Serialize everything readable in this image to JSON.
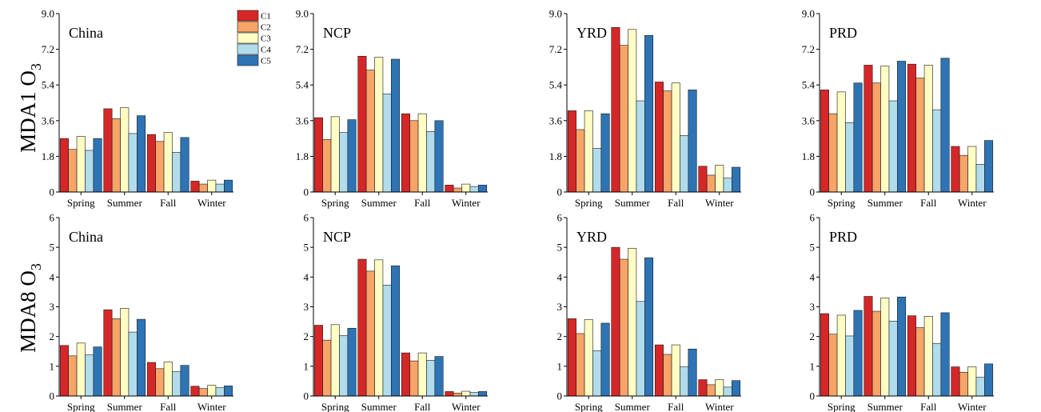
{
  "colors": {
    "C1": "#d62728",
    "C2": "#f7a468",
    "C3": "#fffcc4",
    "C4": "#b1dcec",
    "C5": "#2e74b5"
  },
  "legend": [
    "C1",
    "C2",
    "C3",
    "C4",
    "C5"
  ],
  "rows": [
    {
      "label_main": "MDA1 O",
      "label_sub": "3"
    },
    {
      "label_main": "MDA8 O",
      "label_sub": "3"
    }
  ],
  "chart_data": [
    {
      "type": "bar",
      "row": 0,
      "col": 0,
      "title": "China",
      "categories": [
        "Spring",
        "Summer",
        "Fall",
        "Winter"
      ],
      "ylim": [
        0,
        9.0
      ],
      "yticks": [
        "0",
        "1.8",
        "3.6",
        "5.4",
        "7.2",
        "9.0"
      ],
      "series": [
        {
          "name": "C1",
          "values": [
            2.7,
            4.2,
            2.9,
            0.55
          ]
        },
        {
          "name": "C2",
          "values": [
            2.15,
            3.7,
            2.55,
            0.4
          ]
        },
        {
          "name": "C3",
          "values": [
            2.8,
            4.25,
            3.0,
            0.6
          ]
        },
        {
          "name": "C4",
          "values": [
            2.1,
            2.95,
            2.0,
            0.4
          ]
        },
        {
          "name": "C5",
          "values": [
            2.7,
            3.85,
            2.75,
            0.6
          ]
        }
      ]
    },
    {
      "type": "bar",
      "row": 0,
      "col": 1,
      "title": "NCP",
      "categories": [
        "Spring",
        "Summer",
        "Fall",
        "Winter"
      ],
      "ylim": [
        0,
        9.0
      ],
      "yticks": [
        "0",
        "1.8",
        "3.6",
        "5.4",
        "7.2",
        "9.0"
      ],
      "series": [
        {
          "name": "C1",
          "values": [
            3.75,
            6.85,
            3.95,
            0.35
          ]
        },
        {
          "name": "C2",
          "values": [
            2.65,
            6.15,
            3.6,
            0.2
          ]
        },
        {
          "name": "C3",
          "values": [
            3.8,
            6.8,
            3.95,
            0.4
          ]
        },
        {
          "name": "C4",
          "values": [
            3.0,
            4.95,
            3.05,
            0.28
          ]
        },
        {
          "name": "C5",
          "values": [
            3.65,
            6.7,
            3.6,
            0.35
          ]
        }
      ]
    },
    {
      "type": "bar",
      "row": 0,
      "col": 2,
      "title": "YRD",
      "categories": [
        "Spring",
        "Summer",
        "Fall",
        "Winter"
      ],
      "ylim": [
        0,
        9.0
      ],
      "yticks": [
        "0",
        "1.8",
        "3.6",
        "5.4",
        "7.2",
        "9.0"
      ],
      "series": [
        {
          "name": "C1",
          "values": [
            4.1,
            8.3,
            5.55,
            1.3
          ]
        },
        {
          "name": "C2",
          "values": [
            3.15,
            7.4,
            5.1,
            0.85
          ]
        },
        {
          "name": "C3",
          "values": [
            4.1,
            8.2,
            5.5,
            1.35
          ]
        },
        {
          "name": "C4",
          "values": [
            2.2,
            4.6,
            2.85,
            0.7
          ]
        },
        {
          "name": "C5",
          "values": [
            3.95,
            7.9,
            5.15,
            1.25
          ]
        }
      ]
    },
    {
      "type": "bar",
      "row": 0,
      "col": 3,
      "title": "PRD",
      "categories": [
        "Spring",
        "Summer",
        "Fall",
        "Winter"
      ],
      "ylim": [
        0,
        9.0
      ],
      "yticks": [
        "0",
        "1.8",
        "3.6",
        "5.4",
        "7.2",
        "9.0"
      ],
      "series": [
        {
          "name": "C1",
          "values": [
            5.15,
            6.4,
            6.45,
            2.3
          ]
        },
        {
          "name": "C2",
          "values": [
            3.95,
            5.5,
            5.75,
            1.85
          ]
        },
        {
          "name": "C3",
          "values": [
            5.05,
            6.35,
            6.4,
            2.3
          ]
        },
        {
          "name": "C4",
          "values": [
            3.5,
            4.6,
            4.15,
            1.4
          ]
        },
        {
          "name": "C5",
          "values": [
            5.5,
            6.6,
            6.75,
            2.6
          ]
        }
      ]
    },
    {
      "type": "bar",
      "row": 1,
      "col": 0,
      "title": "China",
      "categories": [
        "Spring",
        "Summer",
        "Fall",
        "Winter"
      ],
      "ylim": [
        0,
        6
      ],
      "yticks": [
        "0",
        "1",
        "2",
        "3",
        "4",
        "5",
        "6"
      ],
      "series": [
        {
          "name": "C1",
          "values": [
            1.7,
            2.9,
            1.13,
            0.33
          ]
        },
        {
          "name": "C2",
          "values": [
            1.35,
            2.6,
            0.92,
            0.25
          ]
        },
        {
          "name": "C3",
          "values": [
            1.78,
            2.95,
            1.15,
            0.36
          ]
        },
        {
          "name": "C4",
          "values": [
            1.38,
            2.15,
            0.82,
            0.28
          ]
        },
        {
          "name": "C5",
          "values": [
            1.65,
            2.58,
            1.03,
            0.34
          ]
        }
      ]
    },
    {
      "type": "bar",
      "row": 1,
      "col": 1,
      "title": "NCP",
      "categories": [
        "Spring",
        "Summer",
        "Fall",
        "Winter"
      ],
      "ylim": [
        0,
        6
      ],
      "yticks": [
        "0",
        "1",
        "2",
        "3",
        "4",
        "5",
        "6"
      ],
      "series": [
        {
          "name": "C1",
          "values": [
            2.38,
            4.6,
            1.45,
            0.15
          ]
        },
        {
          "name": "C2",
          "values": [
            1.88,
            4.2,
            1.18,
            0.1
          ]
        },
        {
          "name": "C3",
          "values": [
            2.4,
            4.58,
            1.45,
            0.16
          ]
        },
        {
          "name": "C4",
          "values": [
            2.03,
            3.73,
            1.2,
            0.12
          ]
        },
        {
          "name": "C5",
          "values": [
            2.28,
            4.38,
            1.33,
            0.15
          ]
        }
      ]
    },
    {
      "type": "bar",
      "row": 1,
      "col": 2,
      "title": "YRD",
      "categories": [
        "Spring",
        "Summer",
        "Fall",
        "Winter"
      ],
      "ylim": [
        0,
        6
      ],
      "yticks": [
        "0",
        "1",
        "2",
        "3",
        "4",
        "5",
        "6"
      ],
      "series": [
        {
          "name": "C1",
          "values": [
            2.6,
            5.0,
            1.72,
            0.55
          ]
        },
        {
          "name": "C2",
          "values": [
            2.1,
            4.6,
            1.4,
            0.38
          ]
        },
        {
          "name": "C3",
          "values": [
            2.57,
            4.97,
            1.72,
            0.55
          ]
        },
        {
          "name": "C4",
          "values": [
            1.52,
            3.18,
            0.98,
            0.3
          ]
        },
        {
          "name": "C5",
          "values": [
            2.45,
            4.65,
            1.58,
            0.52
          ]
        }
      ]
    },
    {
      "type": "bar",
      "row": 1,
      "col": 3,
      "title": "PRD",
      "categories": [
        "Spring",
        "Summer",
        "Fall",
        "Winter"
      ],
      "ylim": [
        0,
        6
      ],
      "yticks": [
        "0",
        "1",
        "2",
        "3",
        "4",
        "5",
        "6"
      ],
      "series": [
        {
          "name": "C1",
          "values": [
            2.77,
            3.35,
            2.7,
            0.98
          ]
        },
        {
          "name": "C2",
          "values": [
            2.08,
            2.85,
            2.3,
            0.8
          ]
        },
        {
          "name": "C3",
          "values": [
            2.72,
            3.3,
            2.68,
            0.98
          ]
        },
        {
          "name": "C4",
          "values": [
            2.02,
            2.52,
            1.77,
            0.63
          ]
        },
        {
          "name": "C5",
          "values": [
            2.88,
            3.33,
            2.8,
            1.08
          ]
        }
      ]
    }
  ]
}
